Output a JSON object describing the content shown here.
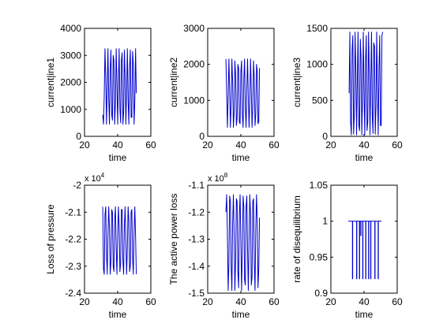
{
  "figure": {
    "background": "#ffffff"
  },
  "chart_data": [
    {
      "type": "line",
      "xlabel": "time",
      "ylabel": "current|ine1",
      "xlim": [
        20,
        60
      ],
      "ylim": [
        0,
        4000
      ],
      "xticks": [
        20,
        40,
        60
      ],
      "yticks": [
        0,
        1000,
        2000,
        3000,
        4000
      ],
      "xtick_labels": [
        "20",
        "40",
        "60"
      ],
      "ytick_labels": [
        "0",
        "1000",
        "2000",
        "3000",
        "4000"
      ],
      "exponent_label": "",
      "color": "#0000cc",
      "x": [
        31.0,
        31.45,
        31.9,
        32.35,
        32.8,
        33.25,
        33.7,
        34.15,
        34.6,
        35.05,
        35.5,
        35.95,
        36.4,
        36.85,
        37.3,
        37.75,
        38.2,
        38.65,
        39.1,
        39.55,
        40.0,
        40.45,
        40.9,
        41.35,
        41.8,
        42.25,
        42.7,
        43.15,
        43.6,
        44.05,
        44.5,
        44.95,
        45.4,
        45.85,
        46.3,
        46.75,
        47.2,
        47.65,
        48.1,
        48.55,
        49.0,
        49.45,
        49.9,
        50.35,
        50.8,
        51.25
      ],
      "y": [
        800,
        450,
        1500,
        3250,
        2200,
        450,
        1800,
        3250,
        1400,
        450,
        2500,
        3200,
        800,
        600,
        3000,
        2800,
        450,
        1200,
        3250,
        2000,
        450,
        2000,
        3250,
        1000,
        500,
        2800,
        3100,
        450,
        900,
        3200,
        2200,
        450,
        1700,
        3250,
        1300,
        450,
        2600,
        3200,
        700,
        700,
        3150,
        2700,
        450,
        1300,
        3250,
        1600
      ]
    },
    {
      "type": "line",
      "xlabel": "time",
      "ylabel": "current|ine2",
      "xlim": [
        20,
        60
      ],
      "ylim": [
        0,
        3000
      ],
      "xticks": [
        20,
        40,
        60
      ],
      "yticks": [
        0,
        1000,
        2000,
        3000
      ],
      "xtick_labels": [
        "20",
        "40",
        "60"
      ],
      "ytick_labels": [
        "0",
        "1000",
        "2000",
        "3000"
      ],
      "exponent_label": "",
      "color": "#0000cc",
      "x": [
        31.0,
        31.45,
        31.9,
        32.35,
        32.8,
        33.25,
        33.7,
        34.15,
        34.6,
        35.05,
        35.5,
        35.95,
        36.4,
        36.85,
        37.3,
        37.75,
        38.2,
        38.65,
        39.1,
        39.55,
        40.0,
        40.45,
        40.9,
        41.35,
        41.8,
        42.25,
        42.7,
        43.15,
        43.6,
        44.05,
        44.5,
        44.95,
        45.4,
        45.85,
        46.3,
        46.75,
        47.2,
        47.65,
        48.1,
        48.55,
        49.0,
        49.45,
        49.9,
        50.35,
        50.8,
        51.25
      ],
      "y": [
        2150,
        1200,
        250,
        1100,
        2150,
        1300,
        250,
        900,
        2150,
        1500,
        250,
        700,
        2100,
        1700,
        300,
        500,
        2000,
        1900,
        400,
        350,
        1800,
        2100,
        600,
        250,
        1600,
        2150,
        800,
        250,
        1300,
        2150,
        1100,
        250,
        1000,
        2150,
        1300,
        250,
        800,
        2100,
        1600,
        300,
        600,
        2000,
        1800,
        350,
        400,
        1900
      ]
    },
    {
      "type": "line",
      "xlabel": "time",
      "ylabel": "current|ine3",
      "xlim": [
        20,
        60
      ],
      "ylim": [
        0,
        1500
      ],
      "xticks": [
        20,
        40,
        60
      ],
      "yticks": [
        0,
        500,
        1000,
        1500
      ],
      "xtick_labels": [
        "20",
        "40",
        "60"
      ],
      "ytick_labels": [
        "0",
        "500",
        "1000",
        "1500"
      ],
      "exponent_label": "",
      "color": "#0000cc",
      "x": [
        31.0,
        31.45,
        31.9,
        32.35,
        32.8,
        33.25,
        33.7,
        34.15,
        34.6,
        35.05,
        35.5,
        35.95,
        36.4,
        36.85,
        37.3,
        37.75,
        38.2,
        38.65,
        39.1,
        39.55,
        40.0,
        40.45,
        40.9,
        41.35,
        41.8,
        42.25,
        42.7,
        43.15,
        43.6,
        44.05,
        44.5,
        44.95,
        45.4,
        45.85,
        46.3,
        46.75,
        47.2,
        47.65,
        48.1,
        48.55,
        49.0,
        49.45,
        49.9,
        50.35,
        50.8,
        51.25
      ],
      "y": [
        600,
        1450,
        200,
        20,
        1200,
        1400,
        30,
        300,
        1450,
        900,
        20,
        800,
        1450,
        150,
        80,
        1350,
        1100,
        20,
        500,
        1450,
        600,
        20,
        1050,
        1400,
        80,
        200,
        1450,
        900,
        20,
        750,
        1450,
        300,
        40,
        1300,
        1250,
        30,
        400,
        1450,
        650,
        20,
        950,
        1400,
        150,
        150,
        1400,
        1450
      ]
    },
    {
      "type": "line",
      "xlabel": "time",
      "ylabel": "Loss of pressure",
      "xlim": [
        20,
        60
      ],
      "ylim": [
        -24000,
        -20000
      ],
      "xticks": [
        20,
        40,
        60
      ],
      "yticks": [
        -24000,
        -23000,
        -22000,
        -21000,
        -20000
      ],
      "xtick_labels": [
        "20",
        "40",
        "60"
      ],
      "ytick_labels": [
        "-2.4",
        "-2.3",
        "-2.2",
        "-2.1",
        "-2"
      ],
      "exponent_label": "x 10^4",
      "color": "#0000cc",
      "x": [
        31.0,
        31.45,
        31.9,
        32.35,
        32.8,
        33.25,
        33.7,
        34.15,
        34.6,
        35.05,
        35.5,
        35.95,
        36.4,
        36.85,
        37.3,
        37.75,
        38.2,
        38.65,
        39.1,
        39.55,
        40.0,
        40.45,
        40.9,
        41.35,
        41.8,
        42.25,
        42.7,
        43.15,
        43.6,
        44.05,
        44.5,
        44.95,
        45.4,
        45.85,
        46.3,
        46.75,
        47.2,
        47.65,
        48.1,
        48.55,
        49.0,
        49.45,
        49.9,
        50.35,
        50.8,
        51.25
      ],
      "y": [
        -20800,
        -23100,
        -23300,
        -21100,
        -20800,
        -22500,
        -23300,
        -21800,
        -20800,
        -21600,
        -23300,
        -22800,
        -20900,
        -21000,
        -23000,
        -23200,
        -21300,
        -20800,
        -22300,
        -23300,
        -22000,
        -20800,
        -21500,
        -23200,
        -22900,
        -20900,
        -20900,
        -22800,
        -23300,
        -21500,
        -20800,
        -22100,
        -23300,
        -22300,
        -20800,
        -21300,
        -23200,
        -23000,
        -21000,
        -20900,
        -22700,
        -23300,
        -21700,
        -20800,
        -21900,
        -23300
      ]
    },
    {
      "type": "line",
      "xlabel": "time",
      "ylabel": "The active power loss",
      "xlim": [
        20,
        60
      ],
      "ylim": [
        -150000000,
        -110000000
      ],
      "xticks": [
        20,
        40,
        60
      ],
      "yticks": [
        -150000000,
        -140000000,
        -130000000,
        -120000000,
        -110000000
      ],
      "xtick_labels": [
        "20",
        "40",
        "60"
      ],
      "ytick_labels": [
        "-1.5",
        "-1.4",
        "-1.3",
        "-1.2",
        "-1.1"
      ],
      "exponent_label": "x 10^8",
      "color": "#0000cc",
      "x": [
        31.0,
        31.45,
        31.9,
        32.35,
        32.8,
        33.25,
        33.7,
        34.15,
        34.6,
        35.05,
        35.5,
        35.95,
        36.4,
        36.85,
        37.3,
        37.75,
        38.2,
        38.65,
        39.1,
        39.55,
        40.0,
        40.45,
        40.9,
        41.35,
        41.8,
        42.25,
        42.7,
        43.15,
        43.6,
        44.05,
        44.5,
        44.95,
        45.4,
        45.85,
        46.3,
        46.75,
        47.2,
        47.65,
        48.1,
        48.55,
        49.0,
        49.45,
        49.9,
        50.35,
        50.8,
        51.25
      ],
      "y": [
        -120000000,
        -113500000,
        -128000000,
        -149000000,
        -139000000,
        -114000000,
        -116000000,
        -140000000,
        -149000000,
        -124000000,
        -113500000,
        -128000000,
        -149000000,
        -138000000,
        -115000000,
        -116000000,
        -142000000,
        -148000000,
        -121000000,
        -113500000,
        -131000000,
        -149000000,
        -134000000,
        -114000000,
        -118000000,
        -145000000,
        -147000000,
        -118000000,
        -114000000,
        -134000000,
        -149000000,
        -130000000,
        -113500000,
        -121000000,
        -147000000,
        -144000000,
        -116000000,
        -115000000,
        -138000000,
        -149000000,
        -126000000,
        -113500000,
        -124000000,
        -148000000,
        -141000000,
        -122000000
      ]
    },
    {
      "type": "line",
      "xlabel": "time",
      "ylabel": "rate of disequilibrium",
      "xlim": [
        20,
        60
      ],
      "ylim": [
        0.9,
        1.05
      ],
      "xticks": [
        20,
        40,
        60
      ],
      "yticks": [
        0.9,
        0.95,
        1.0,
        1.05
      ],
      "xtick_labels": [
        "20",
        "40",
        "60"
      ],
      "ytick_labels": [
        "0.9",
        "0.95",
        "1",
        "1.05"
      ],
      "exponent_label": "",
      "color": "#0000cc",
      "x": [
        30.5,
        33.0,
        33.0,
        33.15,
        33.15,
        35.5,
        35.5,
        35.65,
        35.65,
        37.2,
        37.2,
        37.35,
        37.35,
        38.0,
        38.0,
        38.15,
        38.15,
        39.2,
        39.2,
        39.35,
        39.35,
        41.0,
        41.0,
        41.15,
        41.15,
        42.7,
        42.7,
        42.85,
        42.85,
        44.0,
        44.0,
        44.15,
        44.15,
        46.5,
        46.5,
        46.65,
        46.65,
        48.5,
        48.5,
        48.65,
        48.65,
        50.5
      ],
      "y": [
        1.0,
        1.0,
        0.92,
        0.92,
        1.0,
        1.0,
        0.92,
        0.92,
        1.0,
        1.0,
        0.92,
        0.92,
        1.0,
        1.0,
        0.98,
        0.98,
        1.0,
        1.0,
        0.92,
        0.92,
        1.0,
        1.0,
        0.92,
        0.92,
        1.0,
        1.0,
        0.92,
        0.92,
        1.0,
        1.0,
        0.92,
        0.92,
        1.0,
        1.0,
        0.92,
        0.92,
        1.0,
        1.0,
        0.92,
        0.92,
        1.0,
        1.0
      ]
    }
  ]
}
